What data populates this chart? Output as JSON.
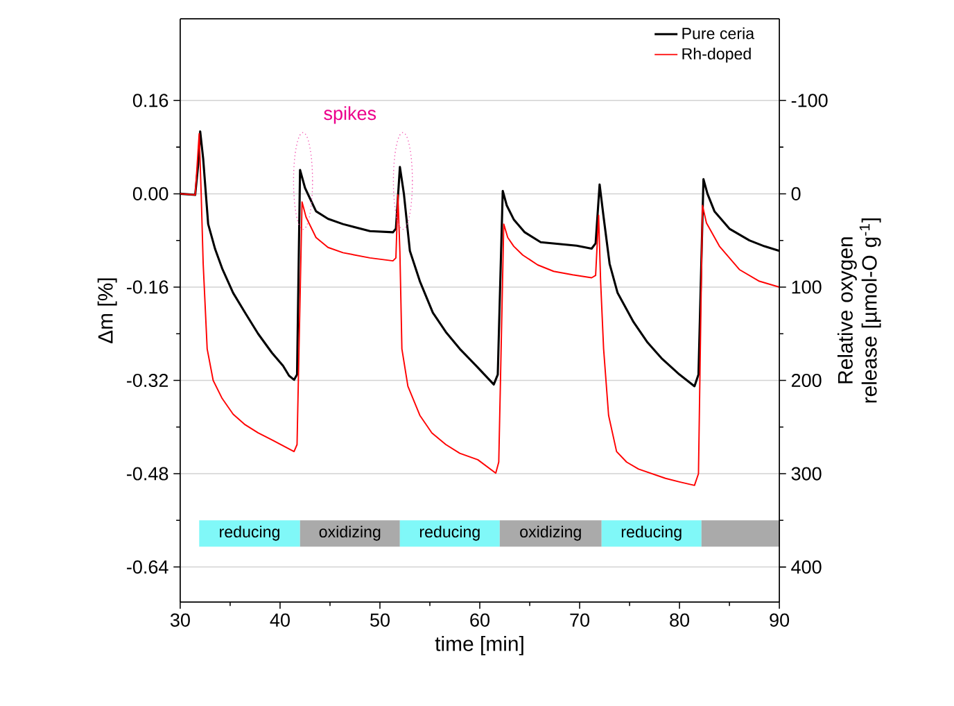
{
  "chart_data": {
    "type": "line",
    "xlabel": "time [min]",
    "ylabel": "Δm [%]",
    "y2label": "Relative oxygen release [µmol-O g$^{-1}$]",
    "xlim": [
      30,
      90
    ],
    "xticks": [
      30,
      40,
      50,
      60,
      70,
      80,
      90
    ],
    "ylim": [
      -0.7,
      0.3
    ],
    "yticks": [
      -0.64,
      -0.48,
      -0.32,
      -0.16,
      {
        "value": 0,
        "label": "0.00"
      },
      0.16
    ],
    "y2lim": [
      437.5,
      -187.5
    ],
    "y2ticks": [
      400,
      300,
      200,
      100,
      0,
      -100
    ],
    "grid": "y",
    "legend": "top right",
    "marker": "none",
    "line_style": "solid",
    "annotations": [
      "spikes"
    ],
    "bands": [
      {
        "axis": "x",
        "from": 31.9,
        "to": 42,
        "label": "reducing",
        "color": "#80f8f8"
      },
      {
        "axis": "x",
        "from": 42,
        "to": 52,
        "label": "oxidizing",
        "color": "#aaaaaa"
      },
      {
        "axis": "x",
        "from": 52,
        "to": 62,
        "label": "reducing",
        "color": "#80f8f8"
      },
      {
        "axis": "x",
        "from": 62,
        "to": 72.2,
        "label": "oxidizing",
        "color": "#aaaaaa"
      },
      {
        "axis": "x",
        "from": 72.2,
        "to": 82.2,
        "label": "reducing",
        "color": "#80f8f8"
      },
      {
        "axis": "x",
        "from": 82.2,
        "to": 90,
        "color": "#aaaaaa"
      }
    ],
    "series": [
      {
        "name": "Pure ceria",
        "color": "#000000",
        "x": [
          30,
          31.5,
          31.8,
          32.0,
          32.3,
          32.8,
          33.5,
          34.2,
          35.3,
          36.5,
          37.8,
          39.2,
          40.3,
          40.9,
          41.4,
          41.7,
          42.0,
          42.5,
          43.6,
          44.8,
          46.3,
          49.0,
          51.3,
          51.6,
          52.0,
          52.4,
          53.0,
          54.0,
          55.3,
          56.6,
          58.0,
          59.7,
          61.4,
          61.8,
          62.3,
          62.7,
          63.4,
          64.5,
          66.1,
          69.7,
          71.2,
          71.6,
          72.0,
          72.4,
          73.0,
          73.8,
          75.4,
          76.8,
          78.2,
          80.0,
          81.5,
          81.9,
          82.4,
          82.8,
          83.5,
          85.0,
          87.0,
          88.5,
          90
        ],
        "values": [
          0,
          -0.002,
          0.05,
          0.107,
          0.06,
          -0.052,
          -0.095,
          -0.128,
          -0.17,
          -0.204,
          -0.24,
          -0.273,
          -0.295,
          -0.312,
          -0.319,
          -0.31,
          0.041,
          0.01,
          -0.03,
          -0.043,
          -0.052,
          -0.064,
          -0.066,
          -0.06,
          0.046,
          0.0,
          -0.098,
          -0.15,
          -0.204,
          -0.237,
          -0.266,
          -0.296,
          -0.327,
          -0.31,
          0.005,
          -0.02,
          -0.044,
          -0.066,
          -0.083,
          -0.089,
          -0.094,
          -0.085,
          0.016,
          -0.04,
          -0.12,
          -0.17,
          -0.22,
          -0.255,
          -0.282,
          -0.31,
          -0.33,
          -0.31,
          0.025,
          0.0,
          -0.03,
          -0.06,
          -0.08,
          -0.09,
          -0.098
        ]
      },
      {
        "name": "Rh-doped",
        "color": "#ff0000",
        "x": [
          30,
          31.5,
          31.7,
          31.9,
          32.1,
          32.3,
          32.7,
          33.3,
          34.2,
          35.3,
          36.5,
          37.8,
          39.2,
          40.3,
          41.4,
          41.7,
          42.2,
          42.6,
          43.6,
          44.8,
          46.3,
          49.0,
          51.3,
          51.6,
          51.8,
          52.0,
          52.2,
          52.8,
          54.0,
          55.2,
          56.6,
          58.0,
          59.8,
          61.6,
          61.9,
          62.4,
          62.8,
          63.4,
          64.3,
          65.8,
          67.4,
          69.3,
          71.2,
          71.6,
          71.9,
          72.1,
          72.4,
          72.9,
          73.7,
          74.7,
          75.9,
          78.6,
          80.0,
          81.5,
          81.9,
          82.3,
          82.7,
          84.0,
          86.0,
          88.0,
          90
        ],
        "values": [
          0,
          -0.002,
          0.05,
          0.103,
          0.0,
          -0.12,
          -0.266,
          -0.32,
          -0.351,
          -0.378,
          -0.396,
          -0.41,
          -0.422,
          -0.432,
          -0.442,
          -0.43,
          -0.014,
          -0.04,
          -0.075,
          -0.092,
          -0.101,
          -0.11,
          -0.115,
          -0.11,
          -0.002,
          -0.1,
          -0.266,
          -0.33,
          -0.38,
          -0.41,
          -0.43,
          -0.445,
          -0.456,
          -0.479,
          -0.46,
          -0.052,
          -0.075,
          -0.09,
          -0.105,
          -0.122,
          -0.133,
          -0.139,
          -0.144,
          -0.14,
          -0.037,
          -0.15,
          -0.266,
          -0.38,
          -0.442,
          -0.46,
          -0.472,
          -0.488,
          -0.494,
          -0.5,
          -0.48,
          -0.02,
          -0.05,
          -0.09,
          -0.13,
          -0.15,
          -0.16
        ]
      }
    ]
  }
}
